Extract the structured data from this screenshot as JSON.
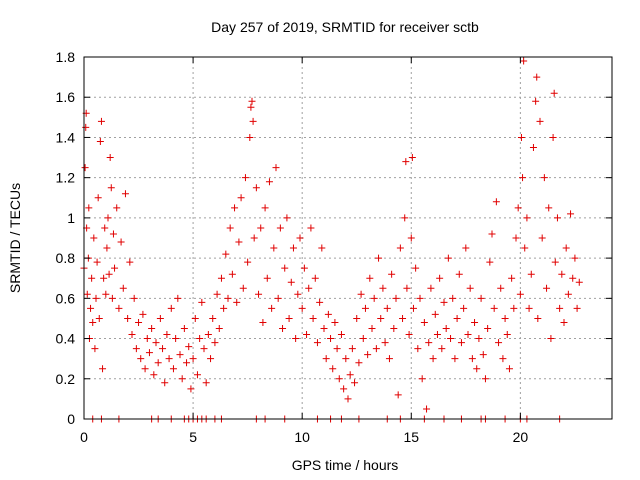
{
  "chart_data": {
    "type": "scatter",
    "title": "Day 257 of 2019, SRMTID for receiver sctb",
    "xlabel": "GPS time / hours",
    "ylabel": "SRMTID / TECUs",
    "xlim": [
      0,
      24.2
    ],
    "ylim": [
      0,
      1.8
    ],
    "xticks": [
      0,
      5,
      10,
      15,
      20
    ],
    "xtick_labels": [
      "0",
      "5",
      "10",
      "15",
      "20"
    ],
    "yticks": [
      0,
      0.2,
      0.4,
      0.6,
      0.8,
      1.0,
      1.2,
      1.4,
      1.6,
      1.8
    ],
    "ytick_labels": [
      "0",
      "0.2",
      "0.4",
      "0.6",
      "0.8",
      "1",
      "1.2",
      "1.4",
      "1.6",
      "1.8"
    ],
    "grid": true,
    "marker": "plus",
    "series": [
      {
        "name": "SRMTID",
        "color": "#e00000",
        "points": [
          [
            0.0,
            0.75
          ],
          [
            0.05,
            1.25
          ],
          [
            0.08,
            1.45
          ],
          [
            0.1,
            1.52
          ],
          [
            0.12,
            0.95
          ],
          [
            0.15,
            0.62
          ],
          [
            0.2,
            0.8
          ],
          [
            0.22,
            1.05
          ],
          [
            0.25,
            0.4
          ],
          [
            0.3,
            0.55
          ],
          [
            0.35,
            0.7
          ],
          [
            0.4,
            0.48
          ],
          [
            0.45,
            0.9
          ],
          [
            0.5,
            0.35
          ],
          [
            0.55,
            0.6
          ],
          [
            0.6,
            0.78
          ],
          [
            0.65,
            1.1
          ],
          [
            0.7,
            0.5
          ],
          [
            0.75,
            1.38
          ],
          [
            0.8,
            1.48
          ],
          [
            0.85,
            0.25
          ],
          [
            0.9,
            0.7
          ],
          [
            0.95,
            0.95
          ],
          [
            1.0,
            0.62
          ],
          [
            1.05,
            0.85
          ],
          [
            1.1,
            1.0
          ],
          [
            1.15,
            0.72
          ],
          [
            1.2,
            1.3
          ],
          [
            1.25,
            1.15
          ],
          [
            1.3,
            0.6
          ],
          [
            1.35,
            0.92
          ],
          [
            1.4,
            0.75
          ],
          [
            1.5,
            1.05
          ],
          [
            1.6,
            0.55
          ],
          [
            1.7,
            0.88
          ],
          [
            1.8,
            0.65
          ],
          [
            1.9,
            1.12
          ],
          [
            2.0,
            0.5
          ],
          [
            2.1,
            0.78
          ],
          [
            2.2,
            0.42
          ],
          [
            2.3,
            0.6
          ],
          [
            2.4,
            0.35
          ],
          [
            2.5,
            0.48
          ],
          [
            2.6,
            0.3
          ],
          [
            2.7,
            0.52
          ],
          [
            2.8,
            0.25
          ],
          [
            2.9,
            0.4
          ],
          [
            3.0,
            0.33
          ],
          [
            3.1,
            0.45
          ],
          [
            3.2,
            0.22
          ],
          [
            3.3,
            0.38
          ],
          [
            3.4,
            0.28
          ],
          [
            3.5,
            0.5
          ],
          [
            3.6,
            0.35
          ],
          [
            3.7,
            0.18
          ],
          [
            3.8,
            0.42
          ],
          [
            3.9,
            0.3
          ],
          [
            4.0,
            0.55
          ],
          [
            4.1,
            0.25
          ],
          [
            4.2,
            0.4
          ],
          [
            4.3,
            0.6
          ],
          [
            4.4,
            0.32
          ],
          [
            4.5,
            0.2
          ],
          [
            4.6,
            0.45
          ],
          [
            4.7,
            0.28
          ],
          [
            4.8,
            0.36
          ],
          [
            4.9,
            0.15
          ],
          [
            5.0,
            0.3
          ],
          [
            5.1,
            0.5
          ],
          [
            5.2,
            0.22
          ],
          [
            5.3,
            0.4
          ],
          [
            5.4,
            0.58
          ],
          [
            5.5,
            0.35
          ],
          [
            5.6,
            0.18
          ],
          [
            5.7,
            0.42
          ],
          [
            5.8,
            0.3
          ],
          [
            5.9,
            0.5
          ],
          [
            6.0,
            0.38
          ],
          [
            6.1,
            0.62
          ],
          [
            6.2,
            0.45
          ],
          [
            6.3,
            0.7
          ],
          [
            6.4,
            0.55
          ],
          [
            6.5,
            0.82
          ],
          [
            6.6,
            0.6
          ],
          [
            6.7,
            0.95
          ],
          [
            6.8,
            0.72
          ],
          [
            6.9,
            1.05
          ],
          [
            7.0,
            0.58
          ],
          [
            7.1,
            0.88
          ],
          [
            7.2,
            1.1
          ],
          [
            7.3,
            0.65
          ],
          [
            7.4,
            1.2
          ],
          [
            7.5,
            0.78
          ],
          [
            7.6,
            1.4
          ],
          [
            7.65,
            1.55
          ],
          [
            7.7,
            1.58
          ],
          [
            7.75,
            1.48
          ],
          [
            7.8,
            0.9
          ],
          [
            7.9,
            1.15
          ],
          [
            8.0,
            0.62
          ],
          [
            8.1,
            0.95
          ],
          [
            8.2,
            0.48
          ],
          [
            8.3,
            1.05
          ],
          [
            8.4,
            0.7
          ],
          [
            8.5,
            1.18
          ],
          [
            8.6,
            0.55
          ],
          [
            8.7,
            0.85
          ],
          [
            8.8,
            1.25
          ],
          [
            8.9,
            0.6
          ],
          [
            9.0,
            0.95
          ],
          [
            9.1,
            0.45
          ],
          [
            9.2,
            0.75
          ],
          [
            9.3,
            1.0
          ],
          [
            9.4,
            0.5
          ],
          [
            9.5,
            0.68
          ],
          [
            9.6,
            0.85
          ],
          [
            9.7,
            0.4
          ],
          [
            9.8,
            0.62
          ],
          [
            9.9,
            0.9
          ],
          [
            10.0,
            0.55
          ],
          [
            10.1,
            0.75
          ],
          [
            10.2,
            0.42
          ],
          [
            10.3,
            0.65
          ],
          [
            10.4,
            0.95
          ],
          [
            10.5,
            0.5
          ],
          [
            10.6,
            0.7
          ],
          [
            10.7,
            0.38
          ],
          [
            10.8,
            0.58
          ],
          [
            10.9,
            0.85
          ],
          [
            11.0,
            0.45
          ],
          [
            11.1,
            0.3
          ],
          [
            11.2,
            0.52
          ],
          [
            11.3,
            0.4
          ],
          [
            11.4,
            0.25
          ],
          [
            11.5,
            0.48
          ],
          [
            11.6,
            0.35
          ],
          [
            11.7,
            0.2
          ],
          [
            11.8,
            0.42
          ],
          [
            11.9,
            0.15
          ],
          [
            12.0,
            0.3
          ],
          [
            12.1,
            0.1
          ],
          [
            12.2,
            0.22
          ],
          [
            12.3,
            0.35
          ],
          [
            12.4,
            0.18
          ],
          [
            12.5,
            0.5
          ],
          [
            12.6,
            0.28
          ],
          [
            12.7,
            0.62
          ],
          [
            12.8,
            0.4
          ],
          [
            12.9,
            0.55
          ],
          [
            13.0,
            0.32
          ],
          [
            13.1,
            0.7
          ],
          [
            13.2,
            0.45
          ],
          [
            13.3,
            0.6
          ],
          [
            13.4,
            0.35
          ],
          [
            13.5,
            0.8
          ],
          [
            13.6,
            0.5
          ],
          [
            13.7,
            0.65
          ],
          [
            13.8,
            0.38
          ],
          [
            13.9,
            0.55
          ],
          [
            14.0,
            0.3
          ],
          [
            14.1,
            0.72
          ],
          [
            14.2,
            0.45
          ],
          [
            14.3,
            0.6
          ],
          [
            14.4,
            0.12
          ],
          [
            14.5,
            0.85
          ],
          [
            14.6,
            0.5
          ],
          [
            14.7,
            1.0
          ],
          [
            14.75,
            1.28
          ],
          [
            14.8,
            0.65
          ],
          [
            14.9,
            0.42
          ],
          [
            15.0,
            0.9
          ],
          [
            15.05,
            1.3
          ],
          [
            15.1,
            0.55
          ],
          [
            15.2,
            0.75
          ],
          [
            15.3,
            0.35
          ],
          [
            15.4,
            0.6
          ],
          [
            15.5,
            0.2
          ],
          [
            15.6,
            0.48
          ],
          [
            15.7,
            0.05
          ],
          [
            15.8,
            0.38
          ],
          [
            15.9,
            0.65
          ],
          [
            16.0,
            0.3
          ],
          [
            16.1,
            0.52
          ],
          [
            16.2,
            0.42
          ],
          [
            16.3,
            0.7
          ],
          [
            16.4,
            0.35
          ],
          [
            16.5,
            0.58
          ],
          [
            16.6,
            0.45
          ],
          [
            16.7,
            0.8
          ],
          [
            16.8,
            0.4
          ],
          [
            16.9,
            0.6
          ],
          [
            17.0,
            0.3
          ],
          [
            17.1,
            0.5
          ],
          [
            17.2,
            0.72
          ],
          [
            17.3,
            0.38
          ],
          [
            17.4,
            0.55
          ],
          [
            17.5,
            0.85
          ],
          [
            17.6,
            0.42
          ],
          [
            17.7,
            0.65
          ],
          [
            17.8,
            0.3
          ],
          [
            17.9,
            0.48
          ],
          [
            18.0,
            0.25
          ],
          [
            18.1,
            0.4
          ],
          [
            18.2,
            0.6
          ],
          [
            18.3,
            0.32
          ],
          [
            18.4,
            0.2
          ],
          [
            18.5,
            0.45
          ],
          [
            18.6,
            0.78
          ],
          [
            18.7,
            0.92
          ],
          [
            18.8,
            0.55
          ],
          [
            18.9,
            1.08
          ],
          [
            19.0,
            0.38
          ],
          [
            19.1,
            0.65
          ],
          [
            19.2,
            0.3
          ],
          [
            19.3,
            0.5
          ],
          [
            19.4,
            0.42
          ],
          [
            19.5,
            0.25
          ],
          [
            19.6,
            0.7
          ],
          [
            19.7,
            0.55
          ],
          [
            19.8,
            0.9
          ],
          [
            19.9,
            1.05
          ],
          [
            20.0,
            0.62
          ],
          [
            20.05,
            1.4
          ],
          [
            20.1,
            1.2
          ],
          [
            20.15,
            1.78
          ],
          [
            20.2,
            0.85
          ],
          [
            20.3,
            1.0
          ],
          [
            20.4,
            0.55
          ],
          [
            20.5,
            0.72
          ],
          [
            20.6,
            1.35
          ],
          [
            20.7,
            1.58
          ],
          [
            20.75,
            1.7
          ],
          [
            20.8,
            0.5
          ],
          [
            20.9,
            1.48
          ],
          [
            21.0,
            0.9
          ],
          [
            21.1,
            1.2
          ],
          [
            21.2,
            0.65
          ],
          [
            21.3,
            1.05
          ],
          [
            21.4,
            0.4
          ],
          [
            21.5,
            1.4
          ],
          [
            21.55,
            1.62
          ],
          [
            21.6,
            0.78
          ],
          [
            21.7,
            1.0
          ],
          [
            21.8,
            0.55
          ],
          [
            21.9,
            0.72
          ],
          [
            22.0,
            0.48
          ],
          [
            22.1,
            0.85
          ],
          [
            22.2,
            0.62
          ],
          [
            22.3,
            1.02
          ],
          [
            22.4,
            0.7
          ],
          [
            22.5,
            0.8
          ],
          [
            22.6,
            0.55
          ],
          [
            22.7,
            0.68
          ],
          [
            0.4,
            0.0
          ],
          [
            0.8,
            0.0
          ],
          [
            1.6,
            0.0
          ],
          [
            3.1,
            0.0
          ],
          [
            3.4,
            0.0
          ],
          [
            4.0,
            0.0
          ],
          [
            4.6,
            0.0
          ],
          [
            4.8,
            0.0
          ],
          [
            5.0,
            0.0
          ],
          [
            5.2,
            0.0
          ],
          [
            5.4,
            0.0
          ],
          [
            5.6,
            0.0
          ],
          [
            6.0,
            0.0
          ],
          [
            6.3,
            0.0
          ],
          [
            7.9,
            0.0
          ],
          [
            8.3,
            0.0
          ],
          [
            9.2,
            0.0
          ],
          [
            10.7,
            0.0
          ],
          [
            11.3,
            0.0
          ],
          [
            11.8,
            0.0
          ],
          [
            12.6,
            0.0
          ],
          [
            13.9,
            0.0
          ],
          [
            14.5,
            0.0
          ],
          [
            15.6,
            0.0
          ],
          [
            16.5,
            0.0
          ],
          [
            17.3,
            0.0
          ],
          [
            18.2,
            0.0
          ],
          [
            18.4,
            0.0
          ],
          [
            19.3,
            0.0
          ],
          [
            20.0,
            0.0
          ],
          [
            20.3,
            0.0
          ],
          [
            21.8,
            0.0
          ]
        ]
      }
    ]
  }
}
